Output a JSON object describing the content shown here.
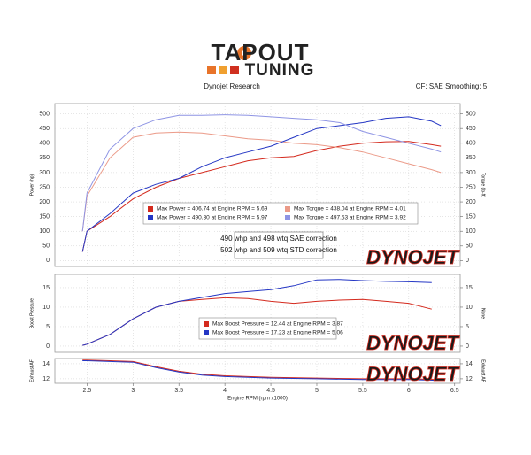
{
  "header": {
    "logo_top": "TAPOUT",
    "logo_bottom": "TUNING",
    "left": "Dynojet Research",
    "right": "CF: SAE  Smoothing: 5"
  },
  "chart_data": [
    {
      "type": "line",
      "ylabel": "Power (hp)",
      "y2label": "Torque (lb-ft)",
      "watermark": "DYNOJET",
      "annotations": [
        "490 whp and 498 wtq SAE correction",
        "502 whp and 509 wtq STD correction"
      ],
      "xlim": [
        2.15,
        6.56
      ],
      "ylim": [
        -20,
        535
      ],
      "yticks": [
        0,
        50,
        100,
        150,
        200,
        250,
        300,
        350,
        400,
        450,
        500
      ],
      "y2lim": [
        -20,
        535
      ],
      "y2ticks": [
        0,
        50,
        100,
        150,
        200,
        250,
        300,
        350,
        400,
        450,
        500
      ],
      "grid": true,
      "x": [
        2.45,
        2.5,
        2.75,
        3.0,
        3.25,
        3.5,
        3.75,
        4.0,
        4.25,
        4.5,
        4.75,
        5.0,
        5.25,
        5.5,
        5.75,
        6.0,
        6.25,
        6.35
      ],
      "series": [
        {
          "name": "Max Power = 406.74 at Engine RPM = 5.69",
          "color": "#d42a1e",
          "values": [
            30,
            100,
            150,
            210,
            250,
            280,
            300,
            320,
            340,
            350,
            355,
            375,
            390,
            400,
            405,
            406,
            395,
            390
          ]
        },
        {
          "name": "Max Torque = 438.04 at Engine RPM = 4.01",
          "color": "#eb9a88",
          "axis": "y2",
          "values": [
            100,
            220,
            350,
            420,
            435,
            438,
            435,
            425,
            415,
            410,
            400,
            395,
            385,
            370,
            350,
            330,
            310,
            300
          ]
        },
        {
          "name": "Max Power = 490.30 at Engine RPM = 5.97",
          "color": "#2436c4",
          "values": [
            30,
            100,
            160,
            230,
            260,
            280,
            320,
            350,
            370,
            390,
            420,
            450,
            460,
            470,
            485,
            490,
            475,
            460
          ]
        },
        {
          "name": "Max Torque = 497.53 at Engine RPM = 3.92",
          "color": "#8e94e4",
          "axis": "y2",
          "values": [
            100,
            230,
            380,
            450,
            480,
            495,
            495,
            497,
            495,
            490,
            485,
            480,
            470,
            440,
            420,
            400,
            380,
            370
          ]
        }
      ]
    },
    {
      "type": "line",
      "ylabel": "Boost Pressure",
      "y2label": "None",
      "watermark": "DYNOJET",
      "xlim": [
        2.15,
        6.56
      ],
      "ylim": [
        -1.6,
        18.4
      ],
      "yticks": [
        0,
        5,
        10,
        15
      ],
      "y2lim": [
        -1.6,
        18.4
      ],
      "y2ticks": [
        0,
        5,
        10,
        15
      ],
      "grid": true,
      "x": [
        2.45,
        2.5,
        2.75,
        3.0,
        3.25,
        3.5,
        3.75,
        4.0,
        4.25,
        4.5,
        4.75,
        5.0,
        5.25,
        5.5,
        5.75,
        6.0,
        6.25
      ],
      "series": [
        {
          "name": "Max Boost Pressure = 12.44 at Engine RPM = 3.87",
          "color": "#d42a1e",
          "values": [
            0.2,
            0.5,
            3,
            7,
            10,
            11.5,
            12,
            12.4,
            12.2,
            11.5,
            11,
            11.5,
            11.8,
            12,
            11.5,
            11,
            9.5
          ]
        },
        {
          "name": "Max Boost Pressure = 17.23 at Engine RPM = 5.06",
          "color": "#2436c4",
          "values": [
            0.2,
            0.5,
            3,
            7,
            10,
            11.5,
            12.5,
            13.5,
            14,
            14.5,
            15.5,
            17,
            17.1,
            16.8,
            16.6,
            16.5,
            16.3
          ]
        }
      ]
    },
    {
      "type": "line",
      "ylabel": "Exhaust AF",
      "y2label": "Exhaust AF",
      "watermark": "DYNOJET",
      "xlabel": "Engine RPM (rpm x1000)",
      "xlim": [
        2.15,
        6.56
      ],
      "xticks": [
        2.5,
        3.0,
        3.5,
        4.0,
        4.5,
        5.0,
        5.5,
        6.0,
        6.5
      ],
      "ylim": [
        11.4,
        14.7
      ],
      "yticks": [
        12,
        14
      ],
      "y2lim": [
        11.4,
        14.7
      ],
      "y2ticks": [
        12,
        14
      ],
      "grid": true,
      "x": [
        2.45,
        2.5,
        2.75,
        3.0,
        3.25,
        3.5,
        3.75,
        4.0,
        4.5,
        5.0,
        5.5,
        6.0,
        6.3
      ],
      "series": [
        {
          "color": "#d42a1e",
          "values": [
            14.5,
            14.5,
            14.4,
            14.3,
            13.6,
            13.0,
            12.6,
            12.4,
            12.2,
            12.1,
            12.0,
            12.0,
            11.9
          ]
        },
        {
          "color": "#2436c4",
          "values": [
            14.4,
            14.4,
            14.3,
            14.2,
            13.5,
            12.9,
            12.5,
            12.3,
            12.1,
            12.0,
            11.9,
            11.9,
            11.8
          ]
        }
      ]
    }
  ]
}
